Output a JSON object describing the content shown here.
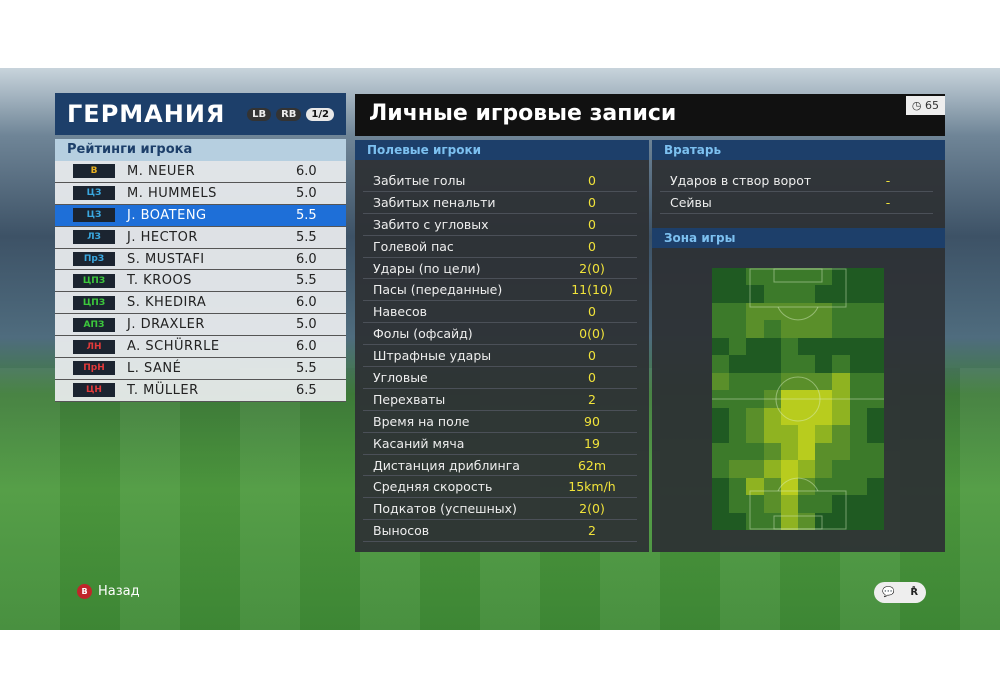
{
  "team": {
    "name": "ГЕРМАНИЯ",
    "lb": "LB",
    "rb": "RB",
    "page": "1/2",
    "ratings_title": "Рейтинги игрока",
    "players": [
      {
        "pos": "В",
        "pos_color": "#e8b020",
        "name": "M. NEUER",
        "rating": "6.0"
      },
      {
        "pos": "ЦЗ",
        "pos_color": "#3aa8e0",
        "name": "M. HUMMELS",
        "rating": "5.0"
      },
      {
        "pos": "ЦЗ",
        "pos_color": "#3aa8e0",
        "name": "J. BOATENG",
        "rating": "5.5",
        "selected": true
      },
      {
        "pos": "ЛЗ",
        "pos_color": "#3aa8e0",
        "name": "J. HECTOR",
        "rating": "5.5"
      },
      {
        "pos": "ПрЗ",
        "pos_color": "#3aa8e0",
        "name": "S. MUSTAFI",
        "rating": "6.0"
      },
      {
        "pos": "ЦПЗ",
        "pos_color": "#3cc83c",
        "name": "T. KROOS",
        "rating": "5.5"
      },
      {
        "pos": "ЦПЗ",
        "pos_color": "#3cc83c",
        "name": "S. KHEDIRA",
        "rating": "6.0"
      },
      {
        "pos": "АПЗ",
        "pos_color": "#3cc83c",
        "name": "J. DRAXLER",
        "rating": "5.0"
      },
      {
        "pos": "ЛН",
        "pos_color": "#e03a3a",
        "name": "A. SCHÜRRLE",
        "rating": "6.0"
      },
      {
        "pos": "ПрН",
        "pos_color": "#e03a3a",
        "name": "L. SANÉ",
        "rating": "5.5"
      },
      {
        "pos": "ЦН",
        "pos_color": "#e03a3a",
        "name": "T. MÜLLER",
        "rating": "6.5"
      }
    ]
  },
  "records": {
    "title": "Личные игровые записи",
    "timer": "65",
    "field_title": "Полевые игроки",
    "field_stats": [
      {
        "label": "Забитые голы",
        "value": "0"
      },
      {
        "label": "Забитых пенальти",
        "value": "0"
      },
      {
        "label": "Забито с угловых",
        "value": "0"
      },
      {
        "label": "Голевой пас",
        "value": "0"
      },
      {
        "label": "Удары (по цели)",
        "value": "2(0)"
      },
      {
        "label": "Пасы (переданные)",
        "value": "11(10)"
      },
      {
        "label": "Навесов",
        "value": "0"
      },
      {
        "label": "Фолы (офсайд)",
        "value": "0(0)"
      },
      {
        "label": "Штрафные удары",
        "value": "0"
      },
      {
        "label": "Угловые",
        "value": "0"
      },
      {
        "label": "Перехваты",
        "value": "2"
      },
      {
        "label": "Время на поле",
        "value": "90"
      },
      {
        "label": "Касаний мяча",
        "value": "19"
      },
      {
        "label": "Дистанция дриблинга",
        "value": "62m"
      },
      {
        "label": "Средняя скорость",
        "value": "15km/h"
      },
      {
        "label": "Подкатов (успешных)",
        "value": "2(0)"
      },
      {
        "label": "Выносов",
        "value": "2"
      }
    ],
    "gk_title": "Вратарь",
    "gk_stats": [
      {
        "label": "Ударов в створ ворот",
        "value": "-"
      },
      {
        "label": "Сейвы",
        "value": "-"
      }
    ],
    "zone_title": "Зона игры",
    "heatmap_levels": [
      [
        0,
        0,
        1,
        1,
        1,
        1,
        1,
        0,
        0,
        0
      ],
      [
        0,
        0,
        0,
        1,
        1,
        1,
        0,
        0,
        0,
        0
      ],
      [
        1,
        1,
        2,
        2,
        2,
        2,
        2,
        1,
        1,
        1
      ],
      [
        1,
        1,
        2,
        1,
        2,
        2,
        2,
        1,
        1,
        1
      ],
      [
        0,
        1,
        0,
        0,
        1,
        0,
        0,
        0,
        0,
        0
      ],
      [
        1,
        0,
        0,
        0,
        1,
        1,
        0,
        1,
        0,
        0
      ],
      [
        2,
        1,
        1,
        1,
        2,
        2,
        2,
        3,
        1,
        1
      ],
      [
        1,
        1,
        1,
        2,
        4,
        4,
        4,
        3,
        1,
        1
      ],
      [
        0,
        1,
        2,
        3,
        4,
        4,
        4,
        3,
        1,
        0
      ],
      [
        0,
        1,
        2,
        3,
        3,
        4,
        3,
        2,
        1,
        0
      ],
      [
        1,
        1,
        1,
        2,
        3,
        4,
        2,
        2,
        1,
        1
      ],
      [
        1,
        2,
        2,
        3,
        4,
        3,
        2,
        1,
        1,
        1
      ],
      [
        0,
        1,
        3,
        2,
        4,
        2,
        1,
        1,
        1,
        0
      ],
      [
        0,
        1,
        1,
        2,
        3,
        1,
        1,
        0,
        0,
        0
      ],
      [
        0,
        0,
        1,
        1,
        3,
        2,
        0,
        0,
        0,
        0
      ]
    ],
    "heatmap_colors": [
      "#1f5a22",
      "#3c7a2a",
      "#5a8f2a",
      "#8fb321",
      "#b8cc1e"
    ]
  },
  "footer": {
    "back_button": "B",
    "back_label": "Назад",
    "hint_icons": [
      "chat-icon",
      "right-stick-icon"
    ]
  }
}
